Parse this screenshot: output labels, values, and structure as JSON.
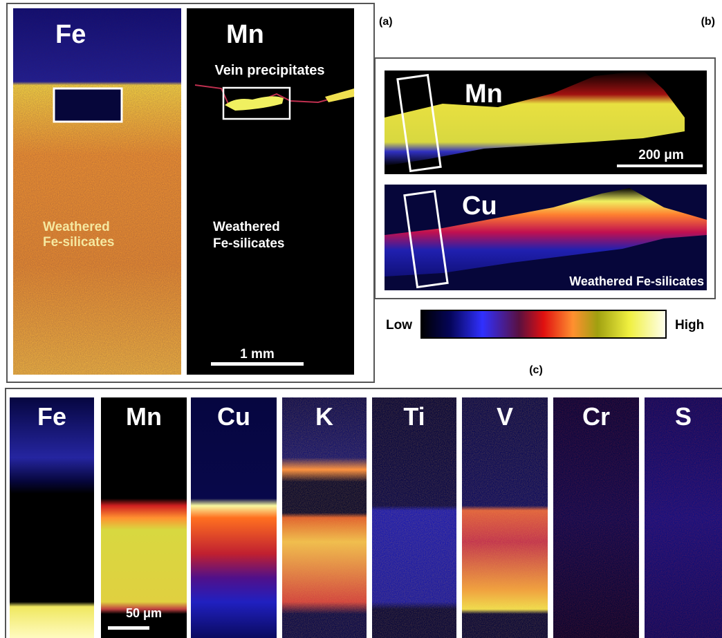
{
  "panel_a": {
    "label": "(a)",
    "fe_map": {
      "element": "Fe",
      "annotation": [
        "Weathered",
        "Fe-silicates"
      ]
    },
    "mn_map": {
      "element": "Mn",
      "vein_label": "Vein precipitates",
      "annotation": [
        "Weathered",
        "Fe-silicates"
      ],
      "scale_bar": "1 mm"
    }
  },
  "panel_b": {
    "label": "(b)",
    "maps": [
      {
        "element": "Mn",
        "scale_bar": "200 μm"
      },
      {
        "element": "Cu",
        "annotation": "Weathered Fe-silicates"
      }
    ],
    "colorbar": {
      "low": "Low",
      "high": "High"
    }
  },
  "panel_c": {
    "label": "(c)",
    "elements": [
      "Fe",
      "Mn",
      "Cu",
      "K",
      "Ti",
      "V",
      "Cr",
      "S"
    ],
    "scale_bar": "50 μm"
  }
}
